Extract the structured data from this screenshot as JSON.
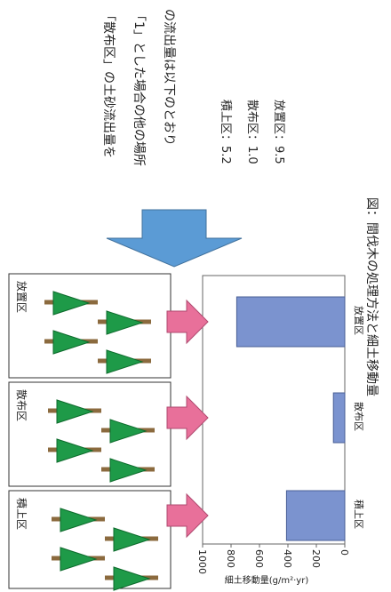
{
  "chart_data": {
    "type": "bar",
    "orientation": "horizontal",
    "categories": [
      "放置区",
      "散布区",
      "積上区"
    ],
    "values": [
      760,
      80,
      410
    ],
    "color": "#7b93cf",
    "ylim": [
      0,
      1000
    ],
    "yticks": [
      0,
      200,
      400,
      600,
      800,
      1000
    ],
    "ylabel": "細土移動量(g/m²·yr)"
  },
  "caption_lines": [
    "「散布区」の土砂流出量を",
    "「1」とした場合の他の場所",
    "の流出量は以下のとおり"
  ],
  "ratios": [
    "積上区：5.2",
    "散布区：1.0",
    "放置区：9.5"
  ],
  "figure_caption": "図：間伐木の処理方法と細土移動量"
}
